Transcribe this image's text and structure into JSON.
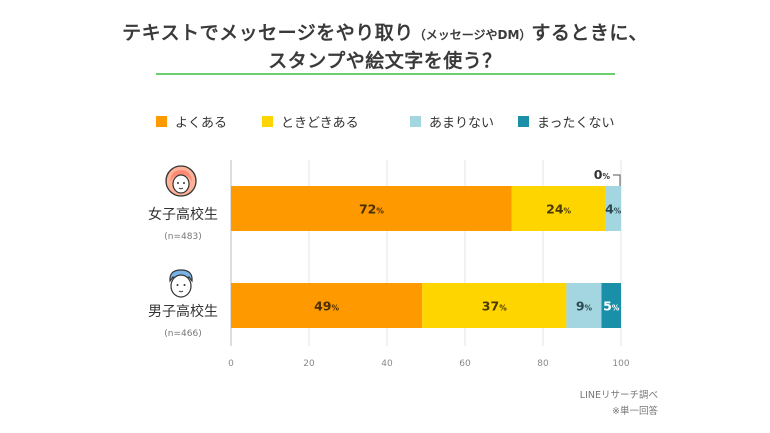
{
  "title": {
    "line1_main": "テキストでメッセージをやり取り",
    "line1_note": "（メッセージやDM）",
    "line1_end": "するときに、",
    "line2": "スタンプや絵文字を使う？"
  },
  "colors": {
    "accent_line": "#6bcf6e",
    "often": "#ff9900",
    "sometimes": "#ffd500",
    "rarely": "#a3d6e0",
    "never": "#1a90a8"
  },
  "footer": {
    "source": "LINEリサーチ調べ",
    "note": "※単一回答"
  },
  "chart_data": {
    "type": "bar",
    "orientation": "horizontal",
    "stacked": true,
    "categories": [
      "女子高校生",
      "男子高校生"
    ],
    "sample_sizes": [
      "(n=483)",
      "(n=466)"
    ],
    "series": [
      {
        "name": "よくある",
        "values": [
          72,
          49
        ],
        "labels": [
          "72",
          "49"
        ]
      },
      {
        "name": "ときどきある",
        "values": [
          24,
          37
        ],
        "labels": [
          "24",
          "37"
        ]
      },
      {
        "name": "あまりない",
        "values": [
          4,
          9
        ],
        "labels": [
          "4",
          "9"
        ]
      },
      {
        "name": "まったくない",
        "values": [
          0,
          5
        ],
        "labels": [
          "0",
          "5"
        ]
      }
    ],
    "value_suffix": "%",
    "xlim": [
      0,
      100
    ],
    "xticks": [
      "0",
      "20",
      "40",
      "60",
      "80",
      "100"
    ],
    "grid": true,
    "legend_position": "top"
  },
  "icons": [
    "girl-face-icon",
    "boy-face-icon"
  ]
}
